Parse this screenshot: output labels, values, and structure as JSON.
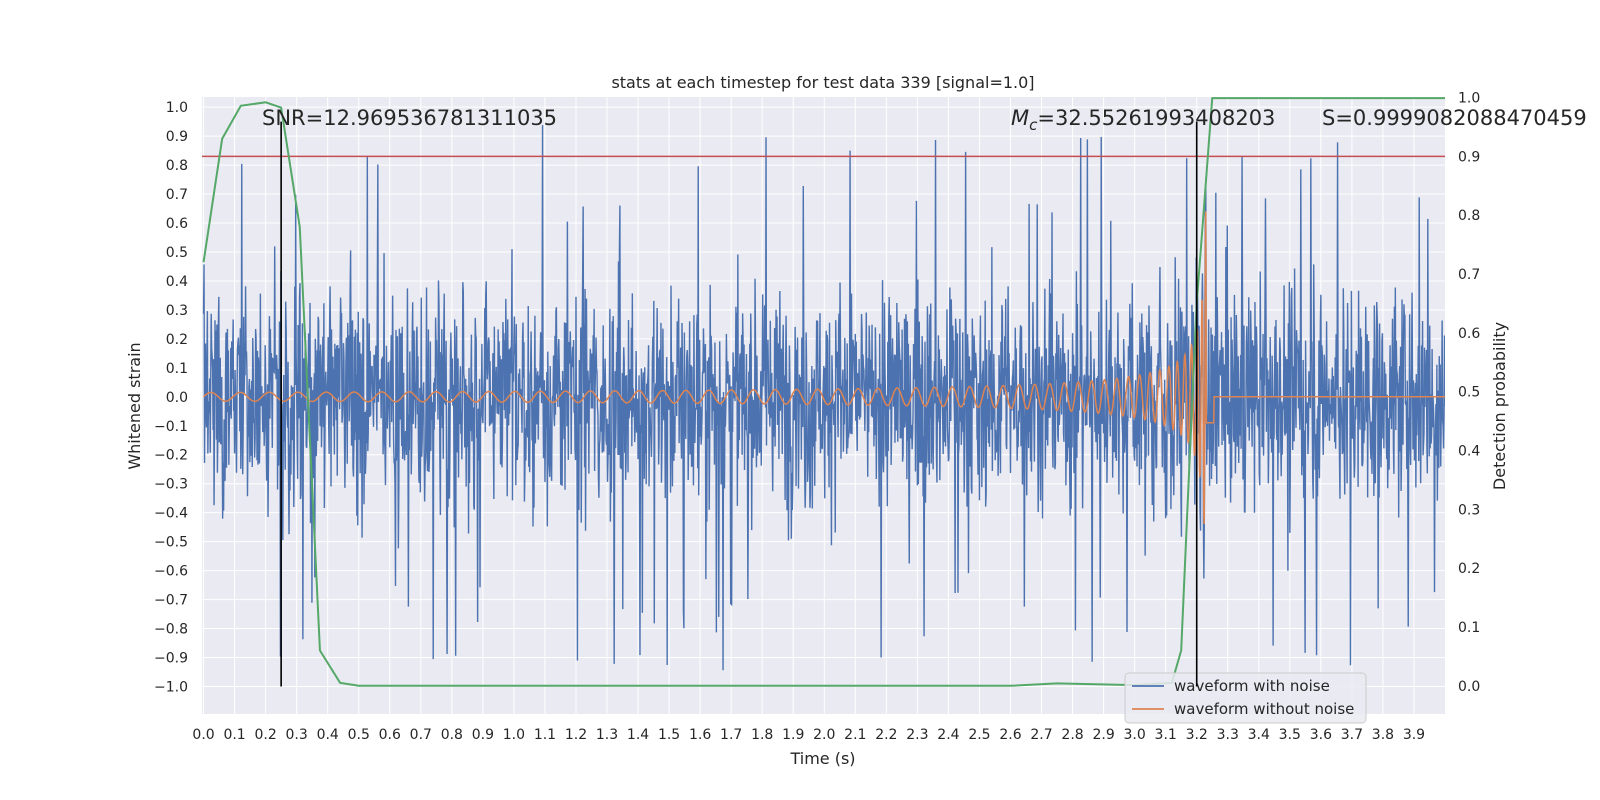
{
  "chart_data": {
    "type": "line",
    "title": "stats at each timestep for test data 339 [signal=1.0]",
    "xlabel": "Time (s)",
    "ylabel": "Whitened strain",
    "y2label": "Detection probability",
    "xlim": [
      -0.005,
      4.0
    ],
    "ylim": [
      -1.095,
      1.035
    ],
    "y2lim": [
      -0.048,
      1.001
    ],
    "x_ticks": [
      "0.0",
      "0.1",
      "0.2",
      "0.3",
      "0.4",
      "0.5",
      "0.6",
      "0.7",
      "0.8",
      "0.9",
      "1.0",
      "1.1",
      "1.2",
      "1.3",
      "1.4",
      "1.5",
      "1.6",
      "1.7",
      "1.8",
      "1.9",
      "2.0",
      "2.1",
      "2.2",
      "2.3",
      "2.4",
      "2.5",
      "2.6",
      "2.7",
      "2.8",
      "2.9",
      "3.0",
      "3.1",
      "3.2",
      "3.3",
      "3.4",
      "3.5",
      "3.6",
      "3.7",
      "3.8",
      "3.9"
    ],
    "y_ticks": [
      "1.0",
      "0.9",
      "0.8",
      "0.7",
      "0.6",
      "0.5",
      "0.4",
      "0.3",
      "0.2",
      "0.1",
      "0.0",
      "−0.1",
      "−0.2",
      "−0.3",
      "−0.4",
      "−0.5",
      "−0.6",
      "−0.7",
      "−0.8",
      "−0.9",
      "−1.0"
    ],
    "y2_ticks": [
      "1.0",
      "0.9",
      "0.8",
      "0.7",
      "0.6",
      "0.5",
      "0.4",
      "0.3",
      "0.2",
      "0.1",
      "0.0"
    ],
    "annotations": {
      "snr": "SNR=12.969536781311035",
      "mc_symbol": "M",
      "mc_sub": "c",
      "mc_value": "=32.55261993408203",
      "s": "S=0.9999082088470459"
    },
    "series": [
      {
        "name": "waveform with noise",
        "color": "#4c72b0",
        "description": "whitened noisy strain, approx. random noise with amplitude ~0.3–0.9, sampled over 0–4 s"
      },
      {
        "name": "waveform without noise",
        "color": "#dd8452",
        "chirp": {
          "start": 0.0,
          "merger": 3.235,
          "end": 4.0,
          "amp_start": 0.015,
          "amp_peak": 0.7
        }
      },
      {
        "name": "detection probability",
        "color": "#55a868",
        "axis": "right",
        "x": [
          0.0,
          0.06,
          0.12,
          0.2,
          0.25,
          0.31,
          0.375,
          0.44,
          0.5,
          1.0,
          2.0,
          2.6,
          2.75,
          3.0,
          3.12,
          3.15,
          3.17,
          3.2,
          3.25,
          3.3,
          3.6,
          4.0
        ],
        "y": [
          0.72,
          0.93,
          0.986,
          0.992,
          0.983,
          0.78,
          0.06,
          0.005,
          0.0,
          0.0,
          0.0,
          0.0,
          0.004,
          0.001,
          0.005,
          0.06,
          0.3,
          0.65,
          0.999,
          0.999,
          0.999,
          0.999
        ]
      }
    ],
    "hlines": [
      {
        "axis": "right",
        "y": 0.9,
        "color": "#c44e52"
      }
    ],
    "vlines": [
      {
        "x": 0.25,
        "ymin": -1.0,
        "ymax": 0.95,
        "color": "#000000"
      },
      {
        "x": 3.2,
        "ymin": -1.0,
        "ymax": 0.95,
        "color": "#000000"
      }
    ],
    "legend": {
      "position": "lower-right",
      "entries": [
        "waveform with noise",
        "waveform without noise"
      ]
    },
    "grid": true,
    "colors": {
      "background": "#eaeaf2",
      "grid": "#ffffff"
    }
  }
}
